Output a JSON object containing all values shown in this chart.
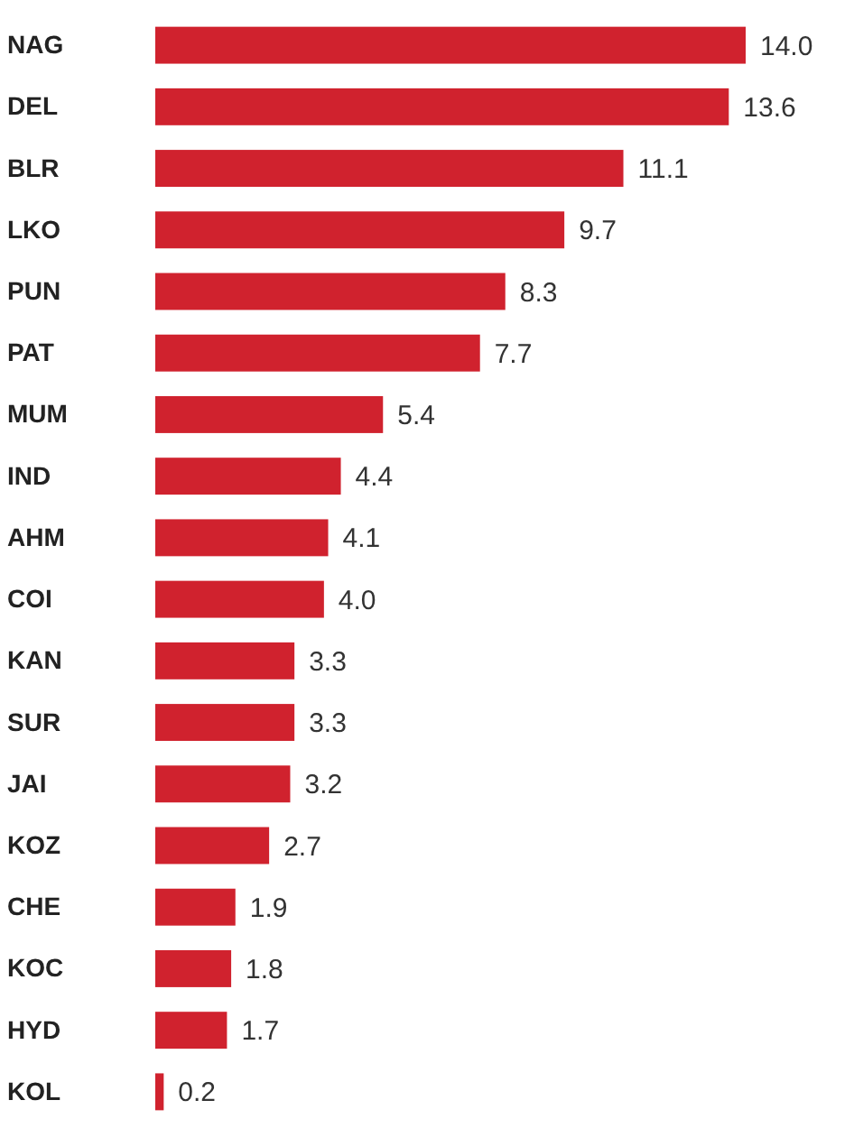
{
  "chart_data": {
    "type": "bar",
    "orientation": "horizontal",
    "categories": [
      "NAG",
      "DEL",
      "BLR",
      "LKO",
      "PUN",
      "PAT",
      "MUM",
      "IND",
      "AHM",
      "COI",
      "KAN",
      "SUR",
      "JAI",
      "KOZ",
      "CHE",
      "KOC",
      "HYD",
      "KOL"
    ],
    "values": [
      14.0,
      13.6,
      11.1,
      9.7,
      8.3,
      7.7,
      5.4,
      4.4,
      4.1,
      4.0,
      3.3,
      3.3,
      3.2,
      2.7,
      1.9,
      1.8,
      1.7,
      0.2
    ],
    "color": "#d0222e",
    "value_labels": [
      "14.0",
      "13.6",
      "11.1",
      "9.7",
      "8.3",
      "7.7",
      "5.4",
      "4.4",
      "4.1",
      "4.0",
      "3.3",
      "3.3",
      "3.2",
      "2.7",
      "1.9",
      "1.8",
      "1.7",
      "0.2"
    ]
  }
}
